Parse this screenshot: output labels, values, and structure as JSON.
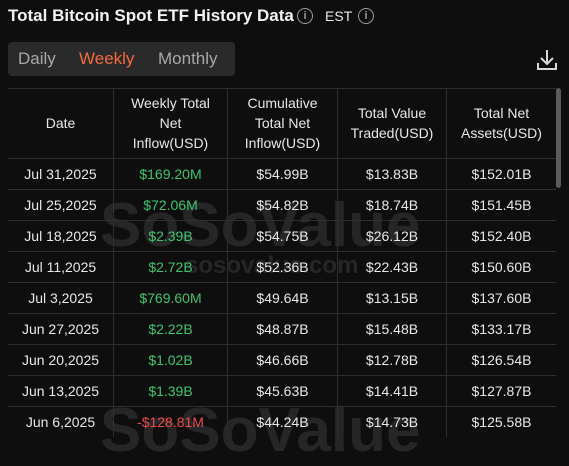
{
  "header": {
    "title": "Total Bitcoin Spot ETF History Data",
    "timezone": "EST"
  },
  "tabs": [
    "Daily",
    "Weekly",
    "Monthly"
  ],
  "active_tab": 1,
  "table": {
    "columns": [
      "Date",
      "Weekly Total Net Inflow(USD)",
      "Cumulative Total Net Inflow(USD)",
      "Total Value Traded(USD)",
      "Total Net Assets(USD)"
    ],
    "rows": [
      [
        "Jul 31,2025",
        "$169.20M",
        "$54.99B",
        "$13.83B",
        "$152.01B"
      ],
      [
        "Jul 25,2025",
        "$72.06M",
        "$54.82B",
        "$18.74B",
        "$151.45B"
      ],
      [
        "Jul 18,2025",
        "$2.39B",
        "$54.75B",
        "$26.12B",
        "$152.40B"
      ],
      [
        "Jul 11,2025",
        "$2.72B",
        "$52.36B",
        "$22.43B",
        "$150.60B"
      ],
      [
        "Jul 3,2025",
        "$769.60M",
        "$49.64B",
        "$13.15B",
        "$137.60B"
      ],
      [
        "Jun 27,2025",
        "$2.22B",
        "$48.87B",
        "$15.48B",
        "$133.17B"
      ],
      [
        "Jun 20,2025",
        "$1.02B",
        "$46.66B",
        "$12.78B",
        "$126.54B"
      ],
      [
        "Jun 13,2025",
        "$1.39B",
        "$45.63B",
        "$14.41B",
        "$127.87B"
      ],
      [
        "Jun 6,2025",
        "-$128.81M",
        "$44.24B",
        "$14.73B",
        "$125.58B"
      ]
    ]
  },
  "watermark": {
    "brand": "SoSoValue",
    "site": "sosovalue.com"
  }
}
